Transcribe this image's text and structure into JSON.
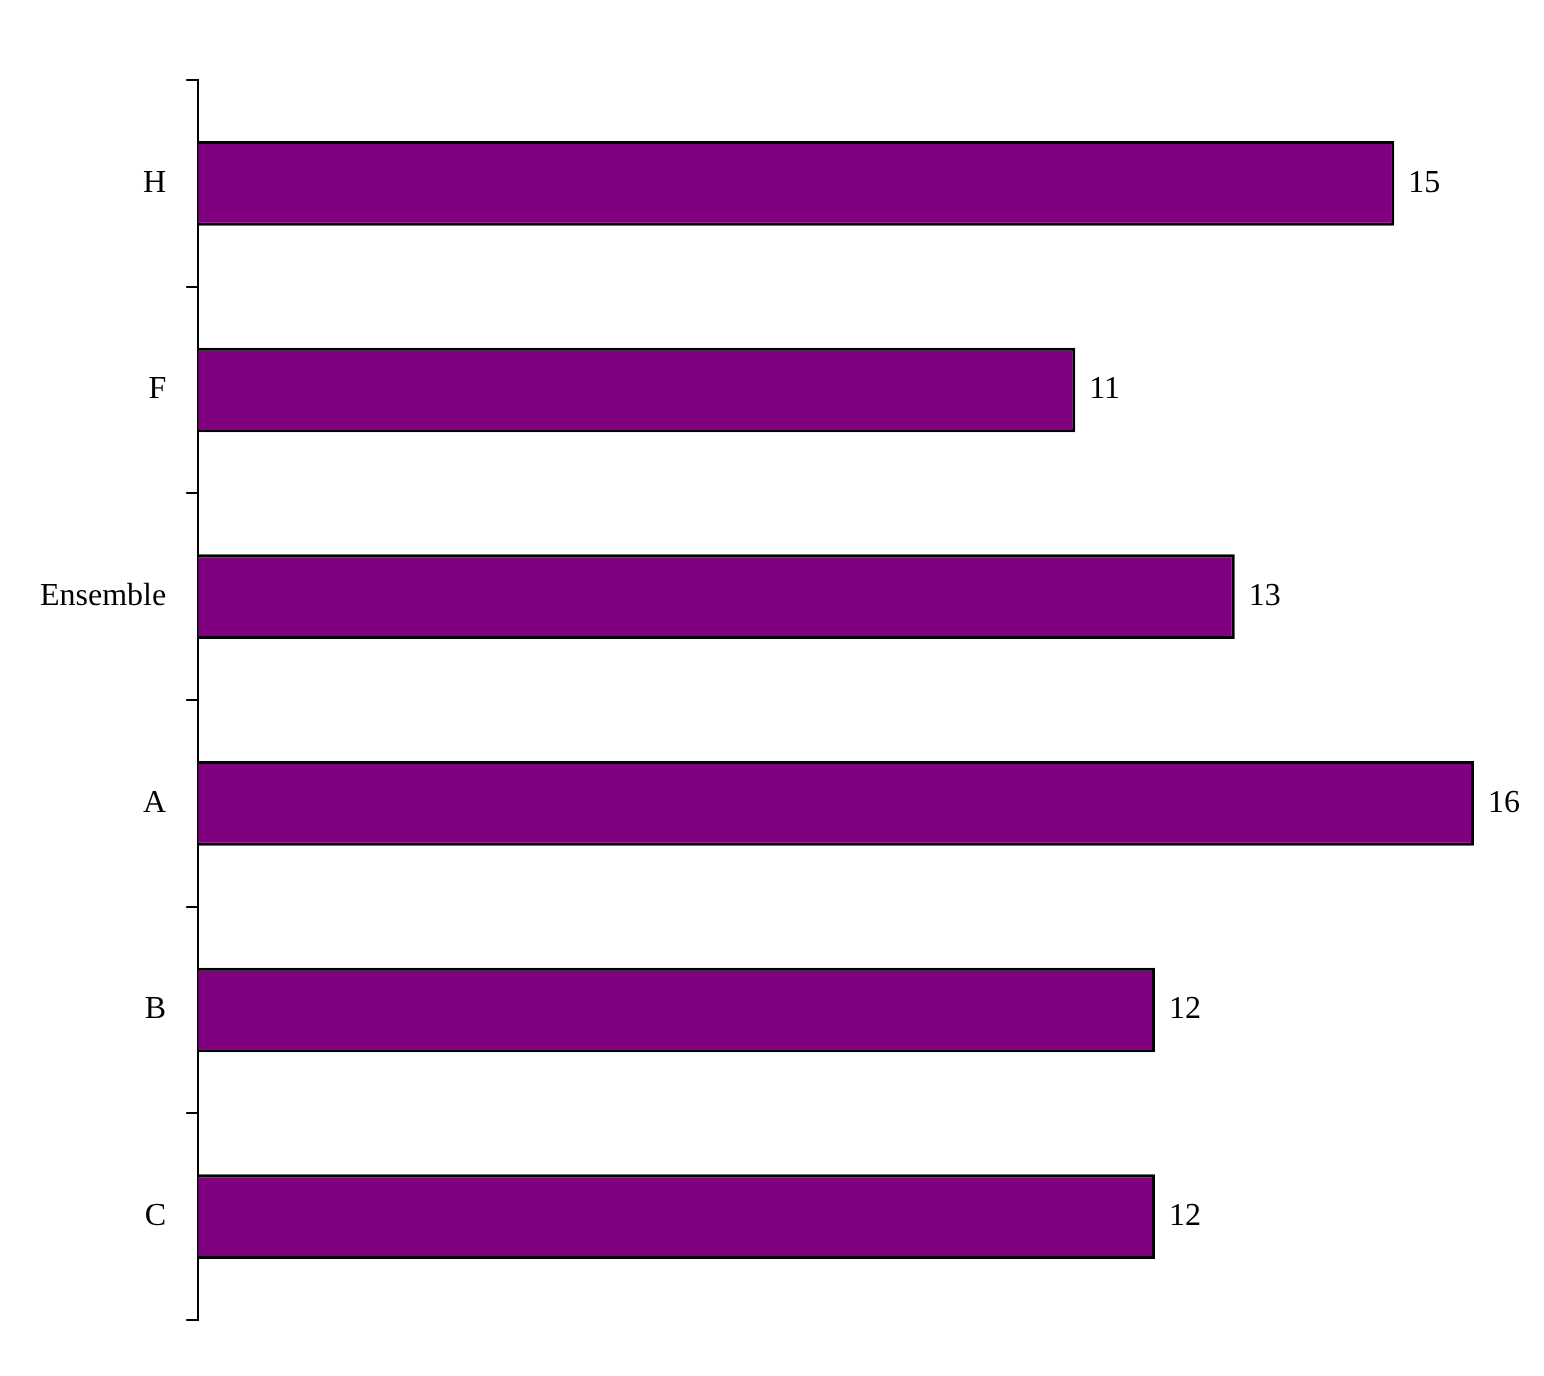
{
  "chart_data": {
    "type": "bar",
    "orientation": "horizontal",
    "categories": [
      "H",
      "F",
      "Ensemble",
      "A",
      "B",
      "C"
    ],
    "values": [
      15,
      11,
      13,
      16,
      12,
      12
    ],
    "color": "#800080",
    "data_labels": true,
    "grid": false,
    "legend": false
  }
}
